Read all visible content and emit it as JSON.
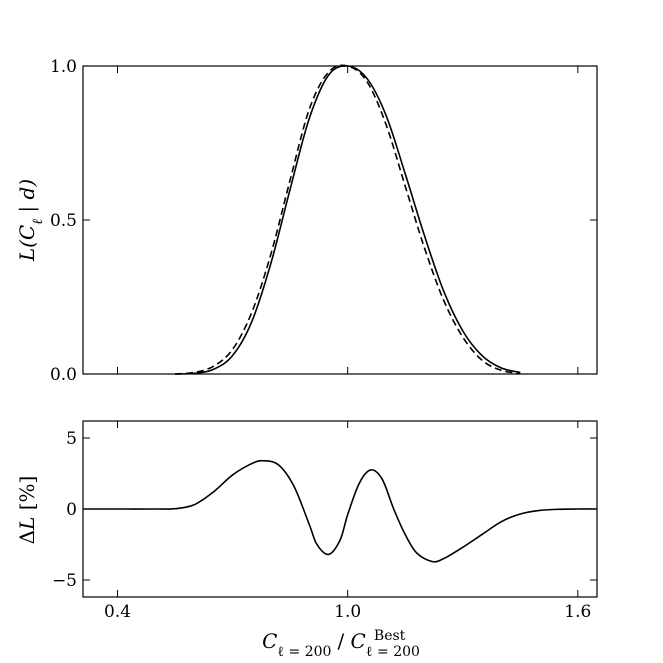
{
  "chart_data": [
    {
      "type": "line",
      "title": "",
      "xlabel": "C_{ℓ=200} / C_{ℓ=200}^{Best}",
      "ylabel": "L(C_ℓ | d)",
      "xlim": [
        0.31,
        1.65
      ],
      "ylim": [
        0.0,
        1.0
      ],
      "x_ticks": [
        0.4,
        1.0,
        1.6
      ],
      "y_ticks": [
        0.0,
        0.5,
        1.0
      ],
      "y_tick_labels": [
        "0.0",
        "0.5",
        "1.0"
      ],
      "x_tick_labels_shown": false,
      "grid": false,
      "series": [
        {
          "style": "solid",
          "color": "#000000",
          "x": [
            0.55,
            0.6,
            0.65,
            0.7,
            0.75,
            0.8,
            0.85,
            0.9,
            0.95,
            1.0,
            1.05,
            1.1,
            1.15,
            1.2,
            1.25,
            1.3,
            1.35,
            1.4,
            1.45
          ],
          "y": [
            0.0,
            0.002,
            0.015,
            0.06,
            0.17,
            0.36,
            0.6,
            0.83,
            0.97,
            1.0,
            0.96,
            0.84,
            0.65,
            0.45,
            0.27,
            0.14,
            0.06,
            0.02,
            0.005
          ]
        },
        {
          "style": "dashed",
          "color": "#000000",
          "x": [
            0.55,
            0.6,
            0.65,
            0.7,
            0.75,
            0.8,
            0.85,
            0.9,
            0.95,
            1.0,
            1.05,
            1.1,
            1.15,
            1.2,
            1.25,
            1.3,
            1.35,
            1.4,
            1.45
          ],
          "y": [
            0.0,
            0.005,
            0.025,
            0.08,
            0.2,
            0.39,
            0.63,
            0.86,
            0.98,
            1.0,
            0.95,
            0.81,
            0.61,
            0.41,
            0.24,
            0.12,
            0.045,
            0.012,
            0.002
          ]
        }
      ]
    },
    {
      "type": "line",
      "title": "",
      "xlabel": "C_{ℓ=200} / C_{ℓ=200}^{Best}",
      "ylabel": "ΔL [%]",
      "xlim": [
        0.31,
        1.65
      ],
      "ylim": [
        -6.2,
        6.2
      ],
      "x_ticks": [
        0.4,
        1.0,
        1.6
      ],
      "x_tick_labels": [
        "0.4",
        "1.0",
        "1.6"
      ],
      "y_ticks": [
        -5,
        0,
        5
      ],
      "y_tick_labels": [
        "−5",
        "0",
        "5"
      ],
      "grid": false,
      "series": [
        {
          "style": "solid",
          "color": "#000000",
          "x": [
            0.31,
            0.4,
            0.5,
            0.55,
            0.6,
            0.65,
            0.7,
            0.75,
            0.78,
            0.82,
            0.86,
            0.9,
            0.92,
            0.95,
            0.98,
            1.0,
            1.03,
            1.06,
            1.09,
            1.12,
            1.15,
            1.18,
            1.22,
            1.25,
            1.3,
            1.35,
            1.4,
            1.45,
            1.5,
            1.55,
            1.6,
            1.65
          ],
          "y": [
            0.0,
            0.0,
            0.0,
            0.02,
            0.3,
            1.2,
            2.4,
            3.2,
            3.4,
            3.1,
            1.6,
            -1.1,
            -2.5,
            -3.2,
            -2.2,
            -0.4,
            1.8,
            2.75,
            2.1,
            0.0,
            -1.8,
            -3.1,
            -3.7,
            -3.5,
            -2.7,
            -1.8,
            -0.9,
            -0.35,
            -0.1,
            -0.02,
            0.0,
            0.0
          ]
        }
      ]
    }
  ]
}
